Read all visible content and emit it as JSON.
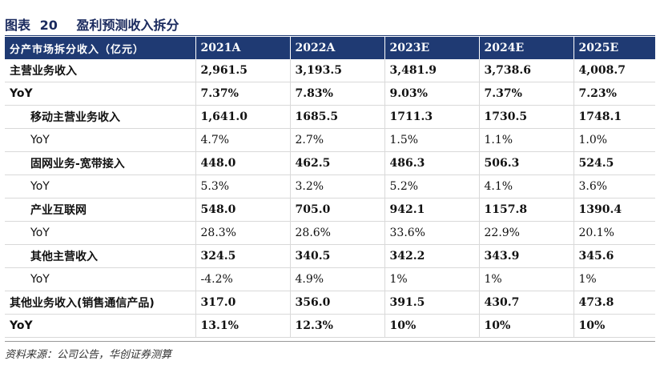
{
  "figure": {
    "label": "图表",
    "number": "20",
    "title": "盈利预测收入拆分"
  },
  "table": {
    "header": [
      "分产市场拆分收入（亿元）",
      "2021A",
      "2022A",
      "2023E",
      "2024E",
      "2025E"
    ],
    "rows": [
      {
        "label": "主营业务收入",
        "values": [
          "2,961.5",
          "3,193.5",
          "3,481.9",
          "3,738.6",
          "4,008.7"
        ]
      },
      {
        "label": "YoY",
        "values": [
          "7.37%",
          "7.83%",
          "9.03%",
          "7.37%",
          "7.23%"
        ]
      },
      {
        "label": "移动主营业务收入",
        "values": [
          "1,641.0",
          "1685.5",
          "1711.3",
          "1730.5",
          "1748.1"
        ]
      },
      {
        "label": "YoY",
        "values": [
          "4.7%",
          "2.7%",
          "1.5%",
          "1.1%",
          "1.0%"
        ]
      },
      {
        "label": "固网业务-宽带接入",
        "values": [
          "448.0",
          "462.5",
          "486.3",
          "506.3",
          "524.5"
        ]
      },
      {
        "label": "YoY",
        "values": [
          "5.3%",
          "3.2%",
          "5.2%",
          "4.1%",
          "3.6%"
        ]
      },
      {
        "label": "产业互联网",
        "values": [
          "548.0",
          "705.0",
          "942.1",
          "1157.8",
          "1390.4"
        ]
      },
      {
        "label": "YoY",
        "values": [
          "28.3%",
          "28.6%",
          "33.6%",
          "22.9%",
          "20.1%"
        ]
      },
      {
        "label": "其他主营收入",
        "values": [
          "324.5",
          "340.5",
          "342.2",
          "343.9",
          "345.6"
        ]
      },
      {
        "label": "YoY",
        "values": [
          "-4.2%",
          "4.9%",
          "1%",
          "1%",
          "1%"
        ]
      },
      {
        "label": "其他业务收入(销售通信产品)",
        "values": [
          "317.0",
          "356.0",
          "391.5",
          "430.7",
          "473.8"
        ]
      },
      {
        "label": "YoY",
        "values": [
          "13.1%",
          "12.3%",
          "10%",
          "10%",
          "10%"
        ]
      }
    ]
  },
  "source": "资料来源：公司公告，华创证券测算"
}
